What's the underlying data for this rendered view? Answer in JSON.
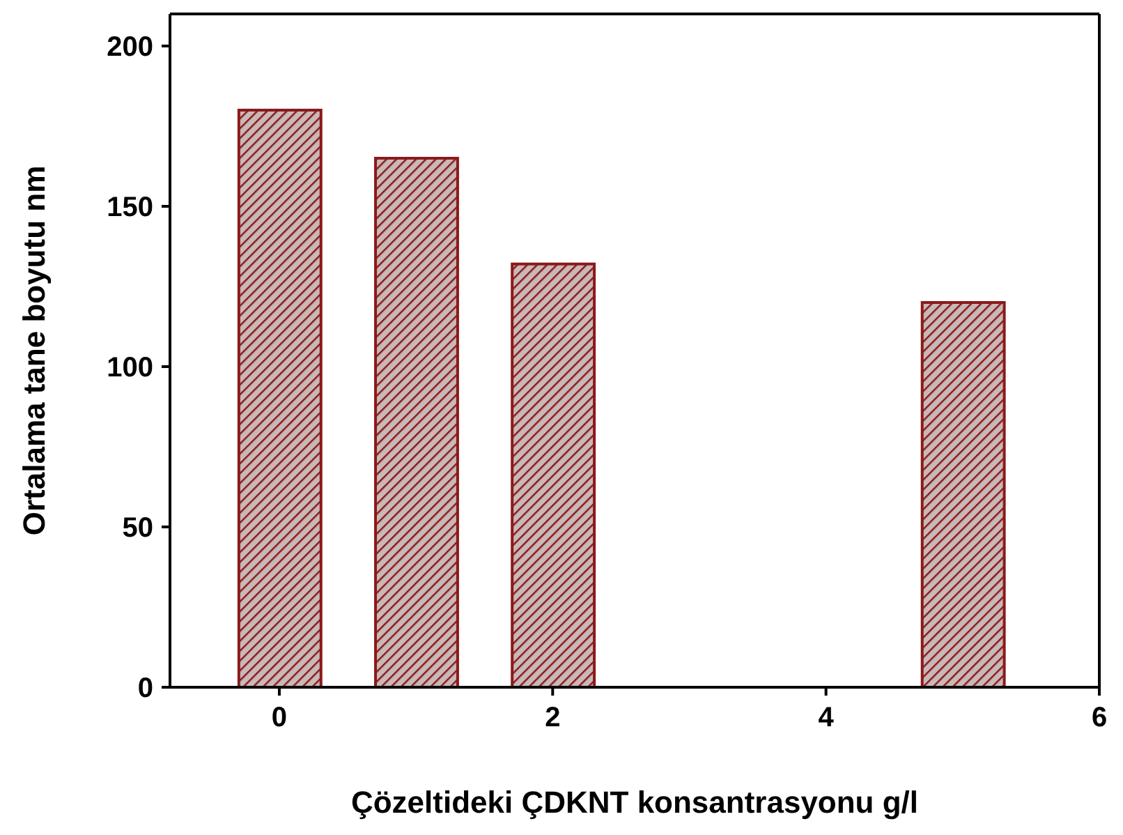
{
  "chart_data": {
    "type": "bar",
    "xlabel": "Çözeltideki ÇDKNT konsantrasyonu g/l",
    "ylabel": "Ortalama tane boyutu nm",
    "x": [
      0,
      1,
      2,
      5
    ],
    "values": [
      180,
      165,
      132,
      120
    ],
    "color": "#8b1a1a",
    "xlim": [
      -0.8,
      6
    ],
    "xticks": [
      0,
      2,
      4,
      6
    ],
    "ylim": [
      0,
      210
    ],
    "yticks": [
      0,
      50,
      100,
      150,
      200
    ],
    "grid": false,
    "legend": false
  }
}
